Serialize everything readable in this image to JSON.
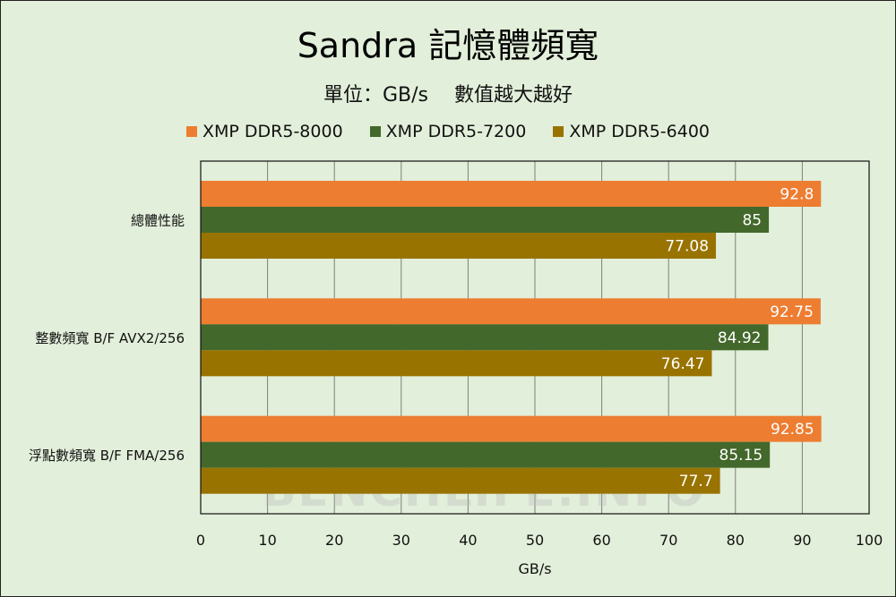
{
  "chart_data": {
    "type": "bar",
    "orientation": "horizontal",
    "title": "Sandra 記憶體頻寬",
    "subtitle": "單位：GB/s　 數值越大越好",
    "xlabel": "GB/s",
    "ylabel": "",
    "xlim": [
      0,
      100
    ],
    "xticks": [
      0,
      10,
      20,
      30,
      40,
      50,
      60,
      70,
      80,
      90,
      100
    ],
    "grid": true,
    "legend_position": "top",
    "categories": [
      "總體性能",
      "整數頻寬 B/F AVX2/256",
      "浮點數頻寬 B/F FMA/256"
    ],
    "series": [
      {
        "name": "XMP DDR5-8000",
        "color": "#ed7d31",
        "values": [
          92.8,
          92.75,
          92.85
        ]
      },
      {
        "name": "XMP DDR5-7200",
        "color": "#43682b",
        "values": [
          85,
          84.92,
          85.15
        ]
      },
      {
        "name": "XMP DDR5-6400",
        "color": "#997300",
        "values": [
          77.08,
          76.47,
          77.7
        ]
      }
    ],
    "watermark": "BENCHLIFE.INFO"
  }
}
